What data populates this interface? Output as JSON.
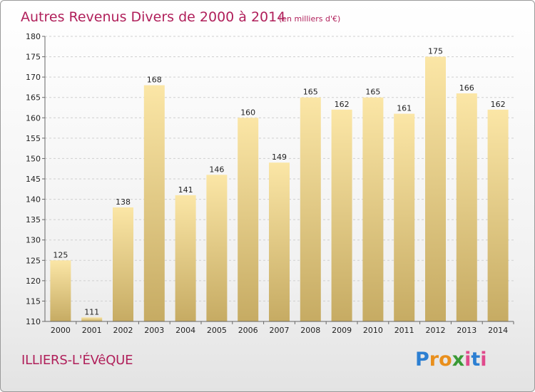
{
  "title": {
    "main": "Autres Revenus Divers de 2000 à 2014",
    "sub": "(en milliers d'€)"
  },
  "commune": "ILLIERS-L'ÉVêQUE",
  "brand": {
    "letters": [
      "P",
      "r",
      "o",
      "x",
      "i",
      "t",
      "i"
    ],
    "colors": [
      "#2c7fd2",
      "#e98f1c",
      "#e98f1c",
      "#3a9a36",
      "#e04a8c",
      "#2c7fd2",
      "#e04a8c"
    ]
  },
  "colors": {
    "bar_top": "#fbe6a6",
    "bar_bottom": "#c6ab63",
    "title": "#b01f5a",
    "grid": "#cfcfcf"
  },
  "chart_data": {
    "type": "bar",
    "categories": [
      "2000",
      "2001",
      "2002",
      "2003",
      "2004",
      "2005",
      "2006",
      "2007",
      "2008",
      "2009",
      "2010",
      "2011",
      "2012",
      "2013",
      "2014"
    ],
    "values": [
      125,
      111,
      138,
      168,
      141,
      146,
      160,
      149,
      165,
      162,
      165,
      161,
      175,
      166,
      162
    ],
    "ylim": [
      110,
      180
    ],
    "yticks": [
      110,
      115,
      120,
      125,
      130,
      135,
      140,
      145,
      150,
      155,
      160,
      165,
      170,
      175,
      180
    ],
    "grid": true,
    "xlabel": "",
    "ylabel": ""
  }
}
